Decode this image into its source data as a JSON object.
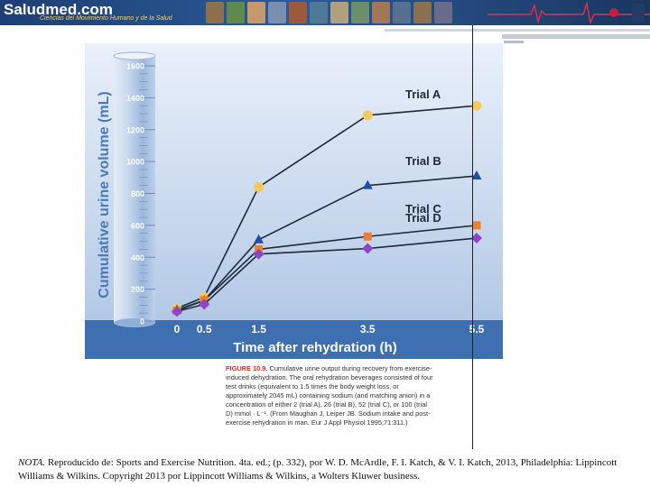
{
  "banner": {
    "logo_text": "Saludmed.com",
    "tagline": "Ciencias del Movimiento Humano y de la Salud",
    "colors": {
      "background": "#1f4479",
      "logo": "#ffffff",
      "tagline": "#ffd24a",
      "ecg": "#e0304a"
    }
  },
  "chart_data": {
    "type": "line",
    "title": "",
    "xlabel": "Time after rehydration (h)",
    "ylabel": "Cumulative urine volume (mL)",
    "x": [
      0,
      0.5,
      1.5,
      3.5,
      5.5
    ],
    "x_tick_labels": [
      "0",
      "0.5",
      "1.5",
      "3.5",
      "5.5"
    ],
    "y_ticks": [
      0,
      200,
      400,
      600,
      800,
      1000,
      1200,
      1400,
      1600
    ],
    "ylim": [
      0,
      1600
    ],
    "grid": false,
    "legend": "inline labels at right",
    "series": [
      {
        "name": "Trial A",
        "marker": "circle",
        "color": "#f4c95d",
        "values": [
          80,
          150,
          840,
          1290,
          1350
        ]
      },
      {
        "name": "Trial B",
        "marker": "triangle",
        "color": "#1d4fa3",
        "values": [
          70,
          130,
          510,
          850,
          910
        ]
      },
      {
        "name": "Trial C",
        "marker": "square",
        "color": "#ef7f2d",
        "values": [
          65,
          130,
          450,
          530,
          600
        ]
      },
      {
        "name": "Trial D",
        "marker": "diamond",
        "color": "#8e44c6",
        "values": [
          60,
          105,
          420,
          455,
          520
        ]
      }
    ]
  },
  "caption": {
    "figure_label": "FIGURE 10.9.",
    "text": "Cumulative urine output during recovery from exercise-induced dehydration. The oral rehydration beverages consisted of four test drinks (equivalent to 1.5 times the body weight loss, or approximately 2045 mL) containing sodium (and matching anion) in a concentration of either 2 (trial A), 26 (trial B), 52 (trial C), or 100 (trial D) mmol · L⁻¹. (From Maughan J, Leiper JB. Sodium intake and post-exercise rehydration in man. Eur J Appl Physiol 1995;71:311.)"
  },
  "note": {
    "label": "NOTA.",
    "text": "Reproducido de: Sports and Exercise Nutrition. 4ta. ed.; (p. 332), por W. D. McArdle, F. I. Katch, & V. I. Katch, 2013, Philadelphia: Lippincott Williams & Wilkins. Copyright 2013 por Lippincott Williams & Wilkins, a Wolters Kluwer business."
  }
}
